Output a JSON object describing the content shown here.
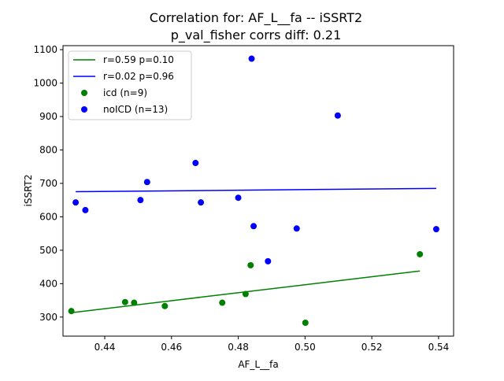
{
  "chart_data": {
    "type": "scatter",
    "title_line1": "Correlation for: AF_L__fa -- iSSRT2",
    "title_line2": "p_val_fisher corrs diff: 0.21",
    "xlabel": "AF_L__fa",
    "ylabel": "iSSRT2",
    "xlim": [
      0.4275,
      0.5445
    ],
    "ylim": [
      243,
      1112
    ],
    "xticks": [
      0.44,
      0.46,
      0.48,
      0.5,
      0.52,
      0.54
    ],
    "xtick_labels": [
      "0.44",
      "0.46",
      "0.48",
      "0.50",
      "0.52",
      "0.54"
    ],
    "yticks": [
      300,
      400,
      500,
      600,
      700,
      800,
      900,
      1000,
      1100
    ],
    "ytick_labels": [
      "300",
      "400",
      "500",
      "600",
      "700",
      "800",
      "900",
      "1000",
      "1100"
    ],
    "grid": false,
    "legend_position": "top-left",
    "series": [
      {
        "name": "icd (n=9)",
        "kind": "scatter",
        "color": "#008000",
        "x": [
          0.43,
          0.4461,
          0.4488,
          0.458,
          0.4752,
          0.4822,
          0.4837,
          0.5001,
          0.5344
        ],
        "y": [
          318,
          345,
          343,
          333,
          343,
          369,
          455,
          283,
          488
        ]
      },
      {
        "name": "noICD (n=13)",
        "kind": "scatter",
        "color": "#0000ff",
        "x": [
          0.4313,
          0.4342,
          0.4507,
          0.4527,
          0.4672,
          0.4688,
          0.48,
          0.484,
          0.4846,
          0.4889,
          0.4975,
          0.5098,
          0.5393
        ],
        "y": [
          643,
          620,
          650,
          704,
          761,
          643,
          657,
          1073,
          572,
          467,
          565,
          903,
          563
        ]
      },
      {
        "name": "r=0.59 p=0.10",
        "kind": "line",
        "color": "#008000",
        "x": [
          0.43,
          0.5344
        ],
        "y": [
          313,
          438
        ]
      },
      {
        "name": "r=0.02 p=0.96",
        "kind": "line",
        "color": "#0000ff",
        "x": [
          0.4313,
          0.5393
        ],
        "y": [
          675,
          685
        ]
      }
    ],
    "legend": [
      {
        "label": "r=0.59 p=0.10",
        "marker": "line",
        "color": "#008000"
      },
      {
        "label": "r=0.02 p=0.96",
        "marker": "line",
        "color": "#0000ff"
      },
      {
        "label": "icd (n=9)",
        "marker": "dot",
        "color": "#008000"
      },
      {
        "label": "noICD (n=13)",
        "marker": "dot",
        "color": "#0000ff"
      }
    ]
  }
}
